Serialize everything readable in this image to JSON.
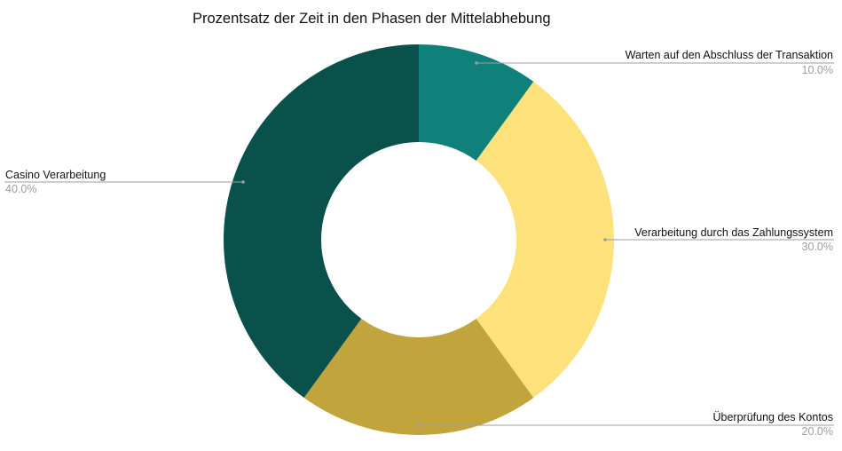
{
  "chart_data": {
    "type": "pie",
    "subtype": "donut",
    "title": "Prozentsatz der Zeit in den Phasen der Mittelabhebung",
    "categories": [
      "Warten auf den Abschluss der Transaktion",
      "Verarbeitung durch das Zahlungssystem",
      "Überprüfung des Kontos",
      "Casino Verarbeitung"
    ],
    "values": [
      10.0,
      30.0,
      20.0,
      40.0
    ],
    "value_labels": [
      "10.0%",
      "30.0%",
      "20.0%",
      "40.0%"
    ],
    "colors": [
      "#10807A",
      "#FDE17A",
      "#C2A43D",
      "#0A514C"
    ],
    "start_angle_deg": 0,
    "direction": "clockwise",
    "hole_ratio": 0.5,
    "legend": "none (labels with leader lines)"
  },
  "labels": {
    "slice0": {
      "name": "Warten auf den Abschluss der Transaktion",
      "pct": "10.0%"
    },
    "slice1": {
      "name": "Verarbeitung durch das Zahlungssystem",
      "pct": "30.0%"
    },
    "slice2": {
      "name": "Überprüfung des Kontos",
      "pct": "20.0%"
    },
    "slice3": {
      "name": "Casino Verarbeitung",
      "pct": "40.0%"
    }
  }
}
